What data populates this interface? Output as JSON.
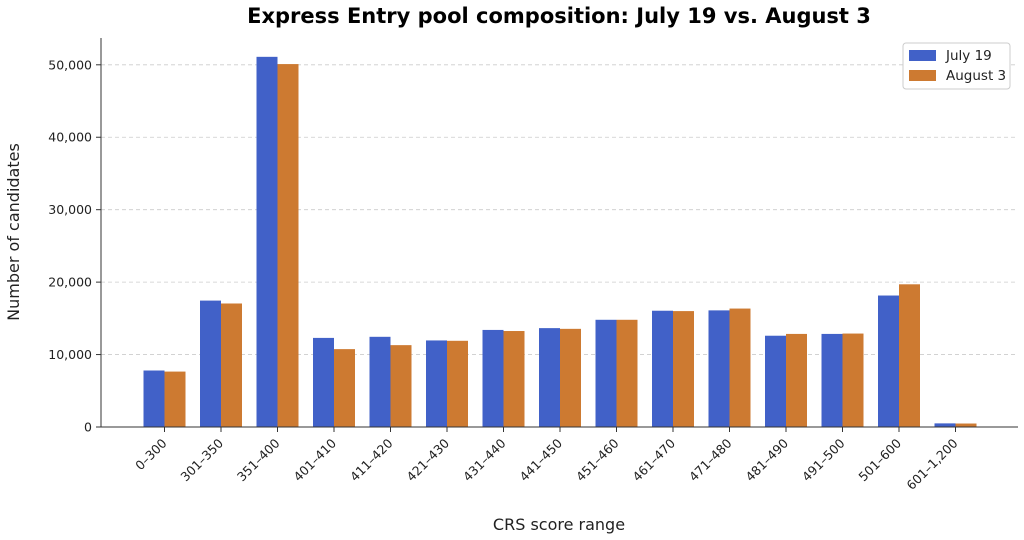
{
  "chart_data": {
    "type": "bar",
    "title": "Express Entry pool composition: July 19 vs. August 3",
    "xlabel": "CRS score range",
    "ylabel": "Number of candidates",
    "ylim": [
      0,
      53700
    ],
    "yticks": [
      0,
      10000,
      20000,
      30000,
      40000,
      50000
    ],
    "ytick_labels": [
      "0",
      "10,000",
      "20,000",
      "30,000",
      "40,000",
      "50,000"
    ],
    "grid": "horizontal dashed",
    "legend": "top-right",
    "categories": [
      "0–300",
      "301–350",
      "351–400",
      "401–410",
      "411–420",
      "421–430",
      "431–440",
      "441–450",
      "451–460",
      "461–470",
      "471–480",
      "481–490",
      "491–500",
      "501–600",
      "601–1,200"
    ],
    "series": [
      {
        "name": "July 19",
        "color": "#4161c8",
        "values": [
          7800,
          17450,
          51100,
          12300,
          12450,
          11950,
          13400,
          13650,
          14800,
          16050,
          16100,
          12600,
          12850,
          18150,
          500
        ]
      },
      {
        "name": "August 3",
        "color": "#cd7a31",
        "values": [
          7650,
          17050,
          50100,
          10750,
          11300,
          11900,
          13250,
          13550,
          14800,
          16000,
          16350,
          12850,
          12900,
          19700,
          480
        ]
      }
    ]
  }
}
